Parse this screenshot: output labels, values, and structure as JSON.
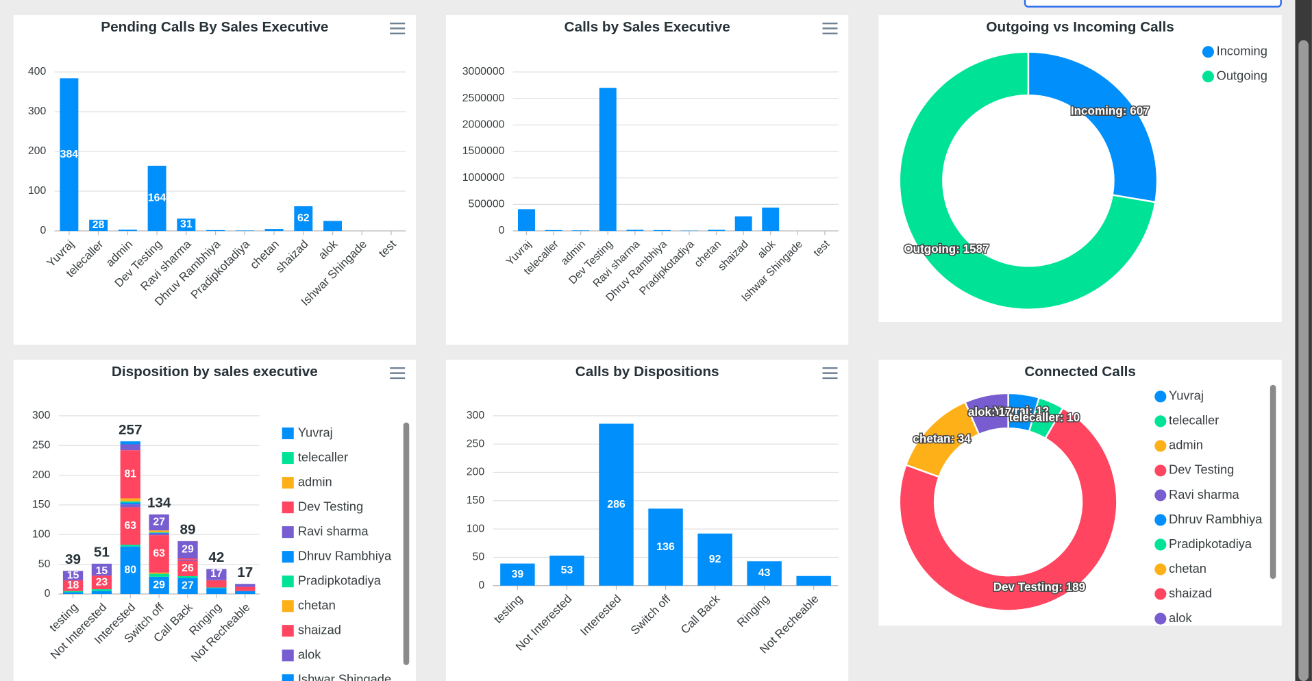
{
  "chart_data": [
    {
      "type": "bar",
      "title": "Pending Calls By Sales Executive",
      "categories": [
        "Yuvraj",
        "telecaller",
        "admin",
        "Dev Testing",
        "Ravi sharma",
        "Dhruv Rambhiya",
        "Pradipkotadiya",
        "chetan",
        "shaizad",
        "alok",
        "Ishwar Shingade",
        "test"
      ],
      "values": [
        384,
        28,
        3,
        164,
        31,
        2,
        1,
        5,
        62,
        25,
        0,
        0
      ],
      "color": "#008ffb",
      "ylim": [
        0,
        400
      ],
      "yticks": [
        0,
        100,
        200,
        300,
        400
      ],
      "grid": true,
      "data_labels": true
    },
    {
      "type": "bar",
      "title": "Calls by Sales Executive",
      "categories": [
        "Yuvraj",
        "telecaller",
        "admin",
        "Dev Testing",
        "Ravi sharma",
        "Dhruv Rambhiya",
        "Pradipkotadiya",
        "chetan",
        "shaizad",
        "alok",
        "Ishwar Shingade",
        "test"
      ],
      "values": [
        410000,
        15000,
        10000,
        2700000,
        20000,
        15000,
        5000,
        20000,
        275000,
        440000,
        0,
        0
      ],
      "color": "#008ffb",
      "ylim": [
        0,
        3000000
      ],
      "yticks": [
        0,
        500000,
        1000000,
        1500000,
        2000000,
        2500000,
        3000000
      ],
      "grid": true,
      "data_labels": false
    },
    {
      "type": "donut",
      "title": "Outgoing vs Incoming Calls",
      "categories": [
        "Incoming",
        "Outgoing"
      ],
      "values": [
        607,
        1587
      ],
      "value_labels": [
        "Incoming: 607",
        "Outgoing: 1587"
      ],
      "colors": [
        "#008ffb",
        "#00e396"
      ],
      "legend": "top-right"
    },
    {
      "type": "stacked-bar",
      "title": "Disposition by sales executive",
      "categories": [
        "testing",
        "Not Interested",
        "Interested",
        "Switch off",
        "Call Back",
        "Ringing",
        "Not Recheable"
      ],
      "series": [
        {
          "name": "Yuvraj",
          "color": "#008ffb",
          "values": [
            3,
            5,
            80,
            29,
            27,
            10,
            5
          ]
        },
        {
          "name": "telecaller",
          "color": "#00e396",
          "values": [
            2,
            3,
            3,
            5,
            3,
            1,
            0
          ]
        },
        {
          "name": "admin",
          "color": "#feb019",
          "values": [
            0,
            0,
            0,
            2,
            0,
            0,
            0
          ]
        },
        {
          "name": "Dev Testing",
          "color": "#ff4560",
          "values": [
            18,
            23,
            63,
            63,
            26,
            12,
            7
          ]
        },
        {
          "name": "Ravi sharma",
          "color": "#775dd0",
          "values": [
            15,
            15,
            5,
            3,
            2,
            2,
            3
          ]
        },
        {
          "name": "Dhruv Rambhiya",
          "color": "#008ffb",
          "values": [
            0,
            0,
            3,
            1,
            0,
            0,
            0
          ]
        },
        {
          "name": "Pradipkotadiya",
          "color": "#00e396",
          "values": [
            0,
            0,
            2,
            1,
            0,
            0,
            0
          ]
        },
        {
          "name": "chetan",
          "color": "#feb019",
          "values": [
            0,
            0,
            5,
            3,
            0,
            0,
            0
          ]
        },
        {
          "name": "shaizad",
          "color": "#ff4560",
          "values": [
            0,
            0,
            81,
            0,
            2,
            0,
            0
          ]
        },
        {
          "name": "alok",
          "color": "#775dd0",
          "values": [
            1,
            5,
            10,
            27,
            29,
            17,
            2
          ]
        },
        {
          "name": "Ishwar Shingade",
          "color": "#008ffb",
          "values": [
            0,
            0,
            5,
            0,
            0,
            0,
            0
          ]
        }
      ],
      "totals": [
        39,
        51,
        257,
        134,
        89,
        42,
        17
      ],
      "ylim": [
        0,
        300
      ],
      "yticks": [
        0,
        50,
        100,
        150,
        200,
        250,
        300
      ],
      "grid": true,
      "legend": "right",
      "data_labels": true
    },
    {
      "type": "bar",
      "title": "Calls by Dispositions",
      "categories": [
        "testing",
        "Not Interested",
        "Interested",
        "Switch off",
        "Call Back",
        "Ringing",
        "Not Recheable"
      ],
      "values": [
        39,
        53,
        286,
        136,
        92,
        43,
        17
      ],
      "color": "#008ffb",
      "ylim": [
        0,
        300
      ],
      "yticks": [
        0,
        50,
        100,
        150,
        200,
        250,
        300
      ],
      "grid": true,
      "data_labels": true
    },
    {
      "type": "donut",
      "title": "Connected Calls",
      "categories": [
        "Yuvraj",
        "telecaller",
        "admin",
        "Dev Testing",
        "Ravi sharma",
        "Dhruv Rambhiya",
        "Pradipkotadiya",
        "chetan",
        "shaizad",
        "alok"
      ],
      "values": [
        12,
        10,
        0,
        189,
        0,
        0,
        0,
        34,
        0,
        17
      ],
      "value_labels": [
        "Yuvraj: 12",
        "telecaller: 10",
        null,
        "Dev Testing: 189",
        null,
        null,
        null,
        "chetan: 34",
        null,
        "alok: 17"
      ],
      "colors": [
        "#008ffb",
        "#00e396",
        "#feb019",
        "#ff4560",
        "#775dd0",
        "#008ffb",
        "#00e396",
        "#feb019",
        "#ff4560",
        "#775dd0"
      ],
      "legend": "right"
    }
  ]
}
